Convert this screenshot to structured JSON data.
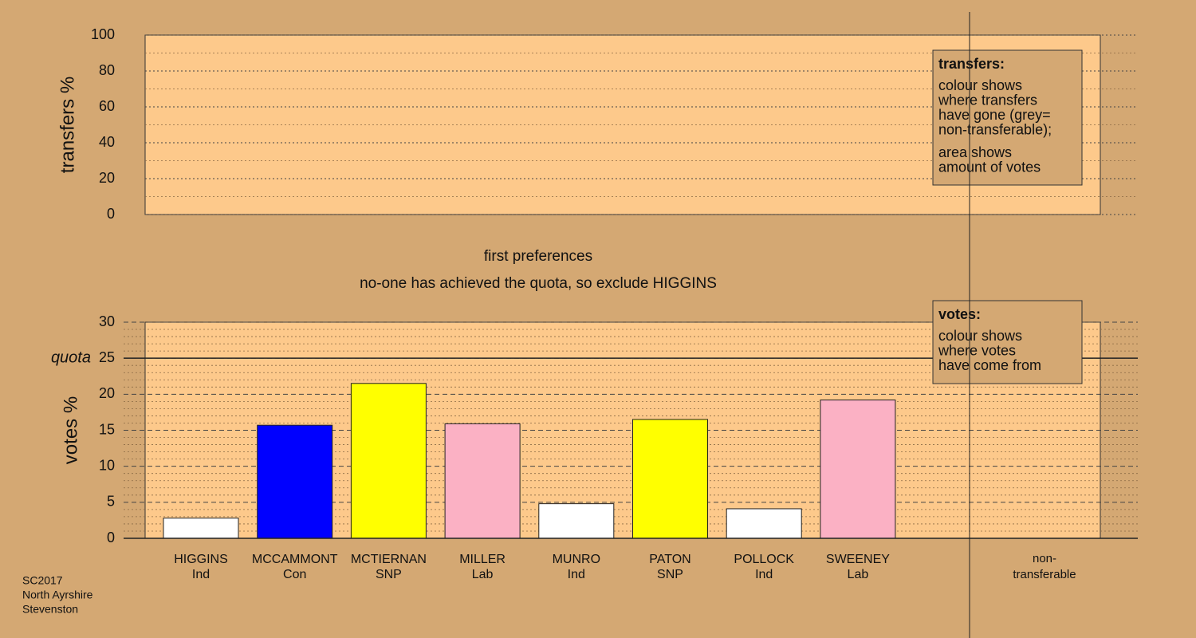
{
  "chart_data": [
    {
      "type": "bar",
      "ylabel": "transfers %",
      "values": [],
      "categories": [],
      "ylim": [
        0,
        100
      ],
      "yticks": [
        0,
        20,
        40,
        60,
        80,
        100
      ],
      "minor_yticks": [
        10,
        30,
        50,
        70,
        90
      ],
      "grid": true,
      "legend": {
        "heading": "transfers:",
        "lines": [
          "colour shows",
          "where transfers",
          "have gone (grey=",
          "non-transferable);",
          "area shows",
          "amount of votes"
        ]
      }
    },
    {
      "type": "bar",
      "title": "first preferences",
      "subtitle": "no-one has achieved the quota, so exclude HIGGINS",
      "ylabel": "votes %",
      "categories": [
        "HIGGINS",
        "MCCAMMONT",
        "MCTIERNAN",
        "MILLER",
        "MUNRO",
        "PATON",
        "POLLOCK",
        "SWEENEY"
      ],
      "parties": [
        "Ind",
        "Con",
        "SNP",
        "Lab",
        "Ind",
        "SNP",
        "Ind",
        "Lab"
      ],
      "values": [
        2.8,
        15.7,
        21.5,
        15.9,
        4.8,
        16.5,
        4.1,
        19.2
      ],
      "colors": [
        "#ffffff",
        "#0000ff",
        "#ffff00",
        "#fbb1c4",
        "#ffffff",
        "#ffff00",
        "#ffffff",
        "#fbb1c4"
      ],
      "extra_column": [
        "non-",
        "transferable"
      ],
      "quota": {
        "value": 25,
        "label": "quota"
      },
      "ylim": [
        0,
        30
      ],
      "yticks": [
        0,
        5,
        10,
        15,
        20,
        25,
        30
      ],
      "minor_yticks": [
        1,
        2,
        3,
        4,
        6,
        7,
        8,
        9,
        11,
        12,
        13,
        14,
        16,
        17,
        18,
        19,
        21,
        22,
        23,
        24,
        26,
        27,
        28,
        29
      ],
      "grid": true,
      "legend": {
        "heading": "votes:",
        "lines": [
          "colour shows",
          "where votes",
          "have come from"
        ]
      }
    }
  ],
  "source": [
    "SC2017",
    "North Ayrshire",
    "Stevenston"
  ]
}
